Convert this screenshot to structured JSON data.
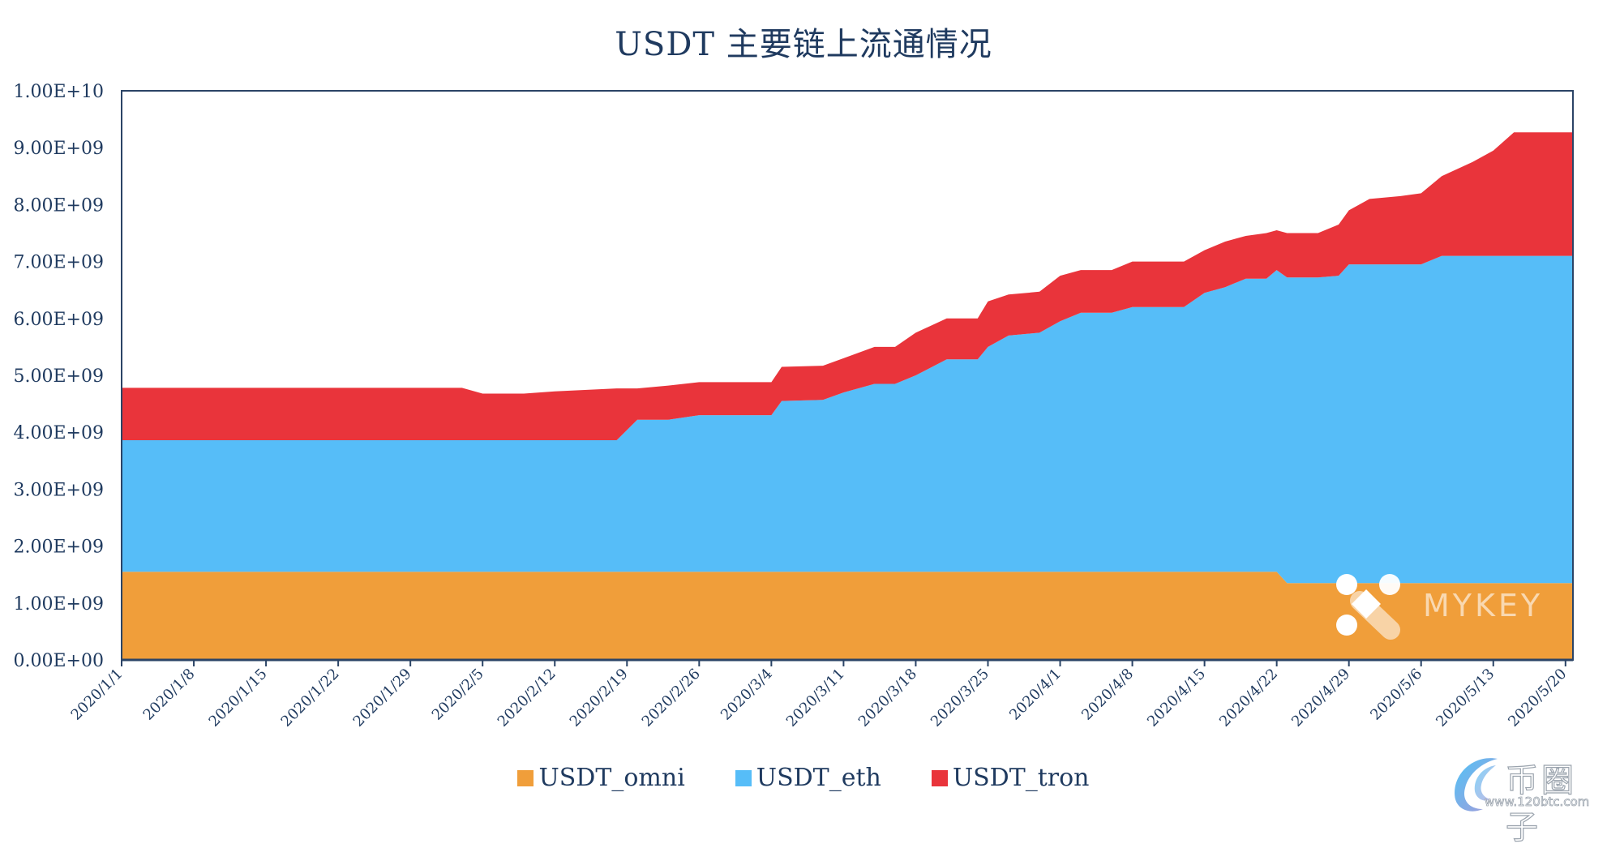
{
  "chart_data": {
    "type": "area",
    "stacked": true,
    "title": "USDT 主要链上流通情况",
    "xlabel": "",
    "ylabel": "",
    "ylim": [
      0,
      10000000000
    ],
    "yticks": [
      "0.00E+00",
      "1.00E+09",
      "2.00E+09",
      "3.00E+09",
      "4.00E+09",
      "5.00E+09",
      "6.00E+09",
      "7.00E+09",
      "8.00E+09",
      "9.00E+09",
      "1.00E+10"
    ],
    "xticks": [
      "2020/1/1",
      "2020/1/8",
      "2020/1/15",
      "2020/1/22",
      "2020/1/29",
      "2020/2/5",
      "2020/2/12",
      "2020/2/19",
      "2020/2/26",
      "2020/3/4",
      "2020/3/11",
      "2020/3/18",
      "2020/3/25",
      "2020/4/1",
      "2020/4/8",
      "2020/4/15",
      "2020/4/22",
      "2020/4/29",
      "2020/5/6",
      "2020/5/13",
      "2020/5/20"
    ],
    "legend_position": "bottom",
    "grid": false,
    "x": [
      "2020/1/1",
      "2020/2/3",
      "2020/2/5",
      "2020/2/9",
      "2020/2/12",
      "2020/2/18",
      "2020/2/20",
      "2020/2/23",
      "2020/2/26",
      "2020/3/4",
      "2020/3/5",
      "2020/3/9",
      "2020/3/11",
      "2020/3/14",
      "2020/3/16",
      "2020/3/18",
      "2020/3/21",
      "2020/3/24",
      "2020/3/25",
      "2020/3/27",
      "2020/3/30",
      "2020/4/1",
      "2020/4/3",
      "2020/4/6",
      "2020/4/8",
      "2020/4/13",
      "2020/4/15",
      "2020/4/17",
      "2020/4/19",
      "2020/4/21",
      "2020/4/22",
      "2020/4/23",
      "2020/4/26",
      "2020/4/28",
      "2020/4/29",
      "2020/5/1",
      "2020/5/4",
      "2020/5/6",
      "2020/5/8",
      "2020/5/11",
      "2020/5/13",
      "2020/5/15",
      "2020/5/21"
    ],
    "series": [
      {
        "name": "USDT_omni",
        "color": "#f09e3a",
        "values": [
          1550000000.0,
          1550000000.0,
          1550000000.0,
          1550000000.0,
          1550000000.0,
          1550000000.0,
          1550000000.0,
          1550000000.0,
          1550000000.0,
          1550000000.0,
          1550000000.0,
          1550000000.0,
          1550000000.0,
          1550000000.0,
          1550000000.0,
          1550000000.0,
          1550000000.0,
          1550000000.0,
          1550000000.0,
          1550000000.0,
          1550000000.0,
          1550000000.0,
          1550000000.0,
          1550000000.0,
          1550000000.0,
          1550000000.0,
          1550000000.0,
          1550000000.0,
          1550000000.0,
          1550000000.0,
          1550000000.0,
          1350000000.0,
          1350000000.0,
          1350000000.0,
          1350000000.0,
          1350000000.0,
          1350000000.0,
          1350000000.0,
          1350000000.0,
          1350000000.0,
          1350000000.0,
          1350000000.0,
          1350000000.0
        ]
      },
      {
        "name": "USDT_eth",
        "color": "#56bdf8",
        "values": [
          2310000000.0,
          2310000000.0,
          2310000000.0,
          2310000000.0,
          2310000000.0,
          2310000000.0,
          2670000000.0,
          2670000000.0,
          2750000000.0,
          2750000000.0,
          3000000000.0,
          3020000000.0,
          3150000000.0,
          3300000000.0,
          3300000000.0,
          3450000000.0,
          3730000000.0,
          3730000000.0,
          3950000000.0,
          4150000000.0,
          4200000000.0,
          4400000000.0,
          4550000000.0,
          4550000000.0,
          4650000000.0,
          4650000000.0,
          4900000000.0,
          5000000000.0,
          5150000000.0,
          5150000000.0,
          5300000000.0,
          5370000000.0,
          5370000000.0,
          5400000000.0,
          5600000000.0,
          5600000000.0,
          5600000000.0,
          5600000000.0,
          5750000000.0,
          5750000000.0,
          5750000000.0,
          5750000000.0,
          5750000000.0
        ]
      },
      {
        "name": "USDT_tron",
        "color": "#e9343b",
        "values": [
          920000000.0,
          920000000.0,
          820000000.0,
          820000000.0,
          860000000.0,
          910000000.0,
          550000000.0,
          600000000.0,
          580000000.0,
          580000000.0,
          600000000.0,
          600000000.0,
          600000000.0,
          650000000.0,
          650000000.0,
          750000000.0,
          720000000.0,
          720000000.0,
          800000000.0,
          720000000.0,
          720000000.0,
          800000000.0,
          750000000.0,
          750000000.0,
          800000000.0,
          800000000.0,
          750000000.0,
          800000000.0,
          750000000.0,
          800000000.0,
          700000000.0,
          780000000.0,
          780000000.0,
          900000000.0,
          950000000.0,
          1150000000.0,
          1200000000.0,
          1250000000.0,
          1400000000.0,
          1650000000.0,
          1850000000.0,
          2170000000.0,
          2170000000.0
        ]
      }
    ]
  },
  "header": {
    "title": "USDT 主要链上流通情况"
  },
  "legend": [
    {
      "label": "USDT_omni",
      "color": "#f09e3a"
    },
    {
      "label": "USDT_eth",
      "color": "#56bdf8"
    },
    {
      "label": "USDT_tron",
      "color": "#e9343b"
    }
  ],
  "watermarks": {
    "mykey": "MYKEY",
    "site_name": "币圈子",
    "site_url": "www.120btc.com"
  }
}
